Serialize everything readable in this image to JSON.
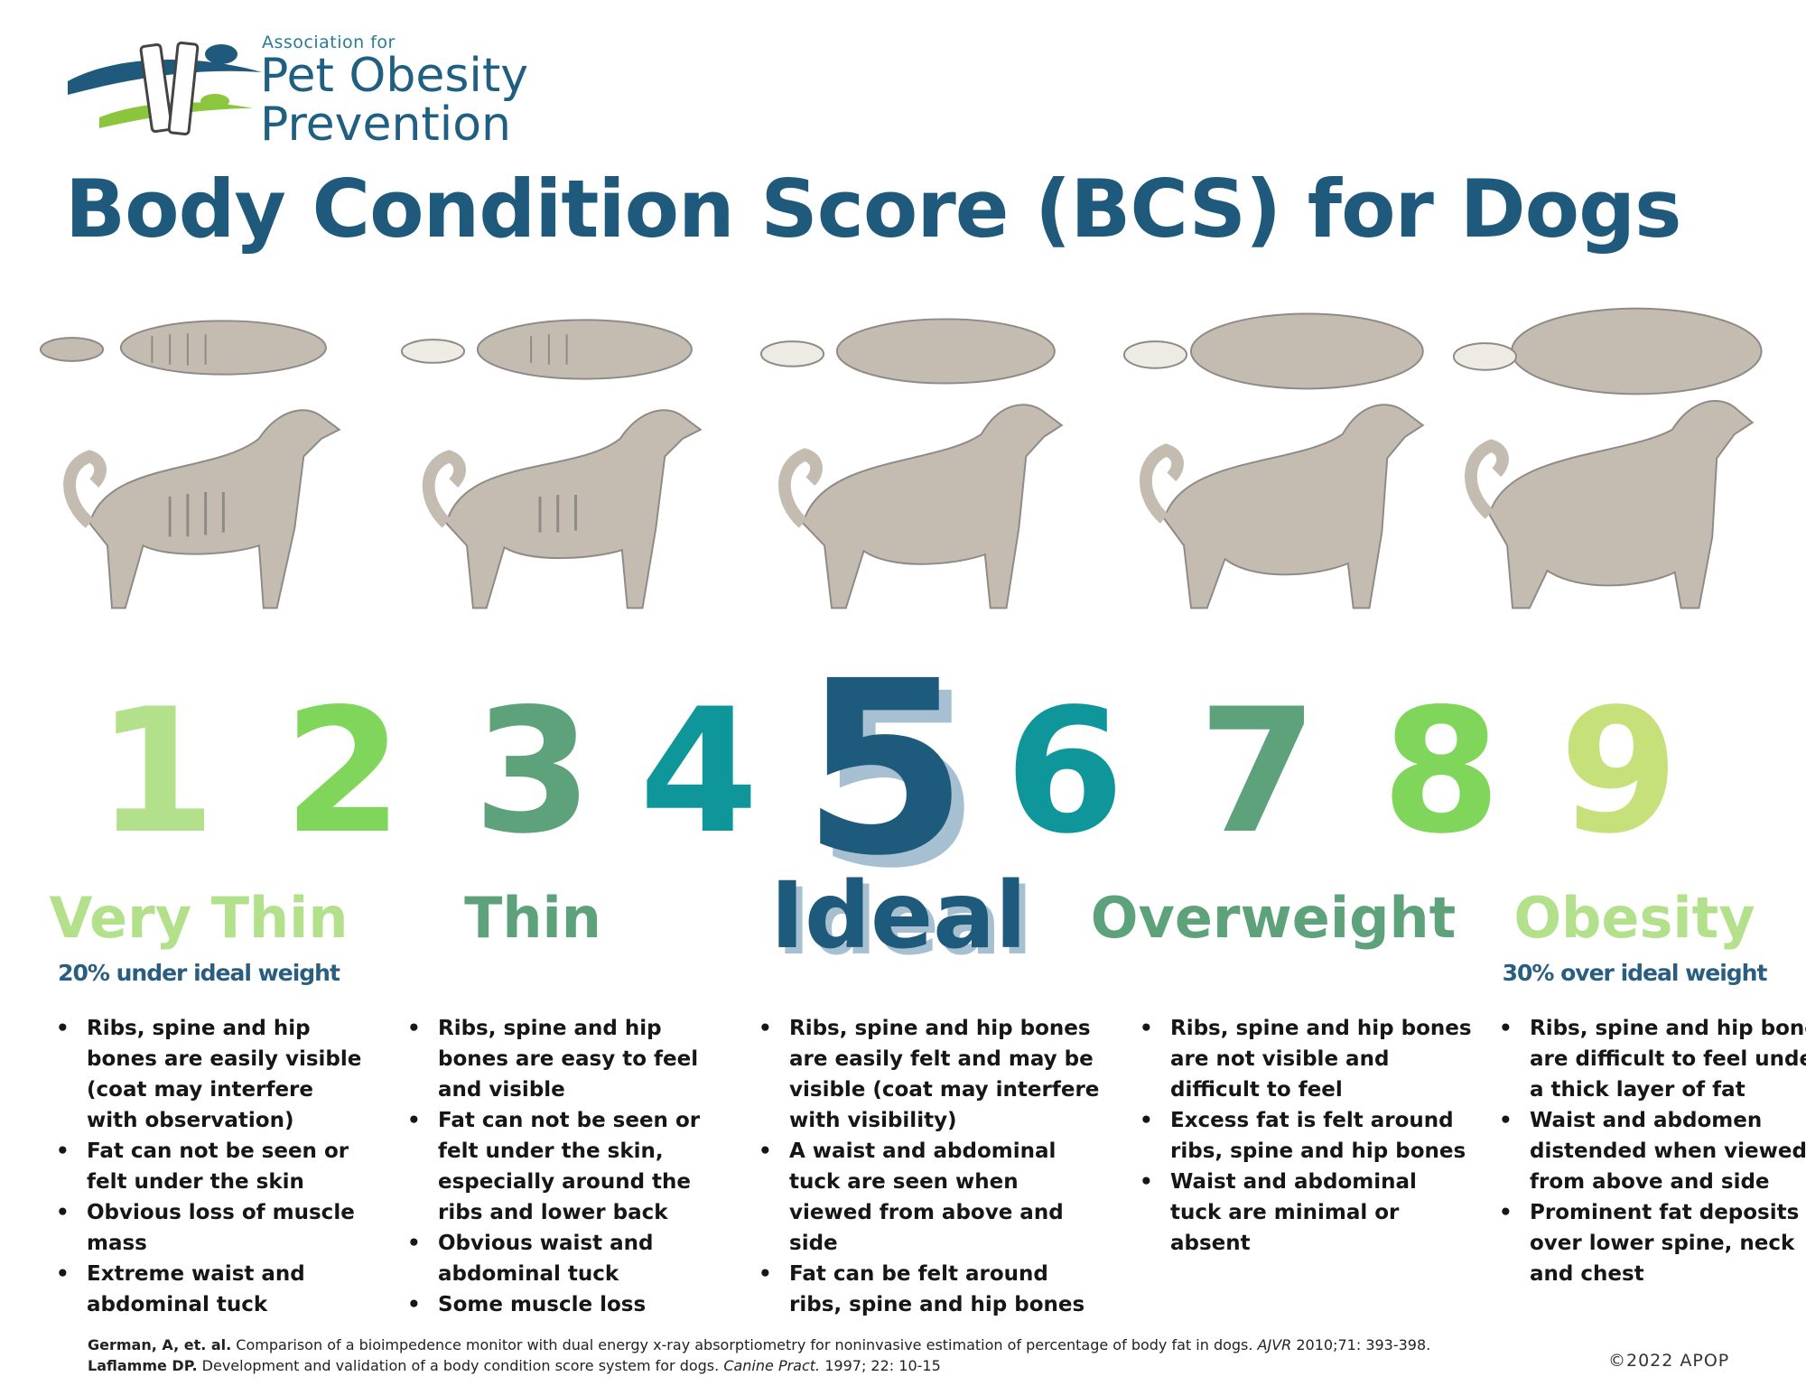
{
  "logo": {
    "small": "Association for",
    "line1": "Pet Obesity",
    "line2": "Prevention"
  },
  "title": "Body Condition Score (BCS) for Dogs",
  "numbers": [
    {
      "label": "1",
      "color": "#b3e08a"
    },
    {
      "label": "2",
      "color": "#7fd65a"
    },
    {
      "label": "3",
      "color": "#5ea27c"
    },
    {
      "label": "4",
      "color": "#0f969a"
    },
    {
      "label": "5",
      "color": "#1e5a7b"
    },
    {
      "label": "6",
      "color": "#0f969a"
    },
    {
      "label": "7",
      "color": "#5ea27c"
    },
    {
      "label": "8",
      "color": "#7fd65a"
    },
    {
      "label": "9",
      "color": "#c6e07a"
    }
  ],
  "categories": [
    {
      "label": "Very Thin",
      "sub": "20% under ideal weight",
      "color": "#b3e08a"
    },
    {
      "label": "Thin",
      "sub": "",
      "color": "#5ea27c"
    },
    {
      "label": "Ideal",
      "sub": "",
      "color": "#1e5a7b"
    },
    {
      "label": "Overweight",
      "sub": "",
      "color": "#5ea27c"
    },
    {
      "label": "Obesity",
      "sub": "30% over ideal weight",
      "color": "#b3e08a"
    }
  ],
  "bullets": [
    [
      "Ribs, spine and hip bones are easily visible (coat may interfere with observation)",
      "Fat can not be seen or felt under the skin",
      "Obvious loss of muscle mass",
      "Extreme waist and abdominal tuck"
    ],
    [
      "Ribs, spine and hip bones are easy to feel and visible",
      "Fat can not be seen or felt under the skin, especially around the ribs and lower back",
      "Obvious waist and abdominal tuck",
      "Some muscle loss"
    ],
    [
      "Ribs, spine and hip bones are easily felt and may be visible (coat may interfere with visibility)",
      "A waist and abdominal tuck are seen when viewed from above and side",
      "Fat can be felt around ribs, spine and hip bones"
    ],
    [
      "Ribs, spine and hip bones are not visible and difficult to feel",
      "Excess fat is felt around ribs, spine and hip bones",
      "Waist and abdominal tuck are minimal or absent"
    ],
    [
      "Ribs, spine and hip bones are difficult to feel under a thick layer of fat",
      "Waist and abdomen distended when viewed from above and side",
      "Prominent fat deposits over lower spine, neck and chest"
    ]
  ],
  "references": [
    {
      "authors": "German, A, et. al.",
      "text": " Comparison of a bioimpedence monitor with dual energy x-ray absorptiometry for noninvasive estimation of percentage of body fat in dogs. ",
      "journal": "AJVR",
      "tail": " 2010;71: 393-398."
    },
    {
      "authors": "Laflamme DP.",
      "text": " Development and validation of a body condition score system for dogs. ",
      "journal": "Canine Pract.",
      "tail": " 1997; 22: 10-15"
    }
  ],
  "copyright": "©2022 APOP",
  "colors": {
    "dog_fill": "#c4bcb0",
    "dog_stroke": "#8e8a86",
    "title": "#1f5a7c"
  }
}
